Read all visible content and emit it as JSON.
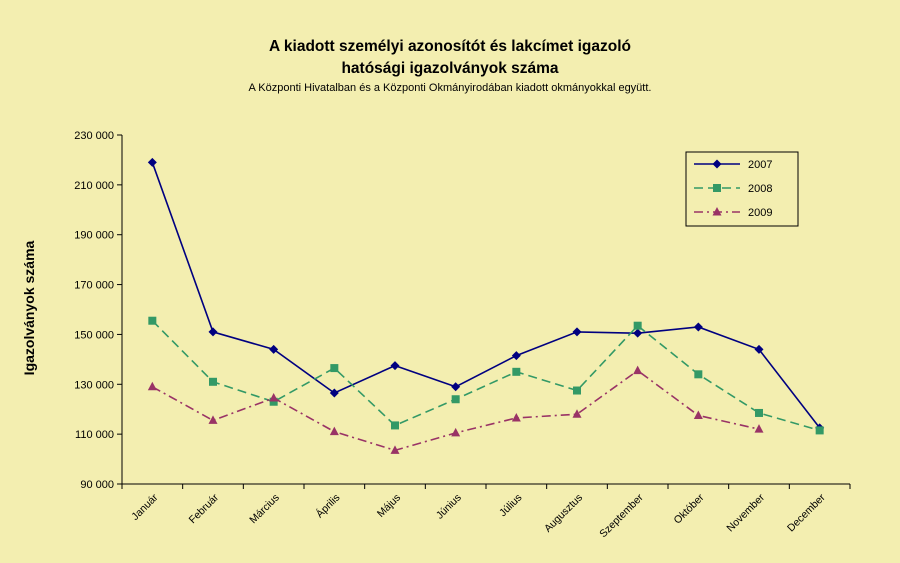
{
  "chart_data": {
    "type": "line",
    "title_line1": "A kiadott személyi azonosítót és lakcímet igazoló",
    "title_line2": "hatósági igazolványok száma",
    "subtitle": "A Központi Hivatalban és a Központi Okmányirodában kiadott okmányokkal együtt.",
    "xlabel": "",
    "ylabel": "Igazolványok száma",
    "ylim": [
      90000,
      230000
    ],
    "yticks": [
      90000,
      110000,
      130000,
      150000,
      170000,
      190000,
      210000,
      230000
    ],
    "ytick_labels": [
      "90 000",
      "110 000",
      "130 000",
      "150 000",
      "170 000",
      "190 000",
      "210 000",
      "230 000"
    ],
    "categories": [
      "Január",
      "Február",
      "Március",
      "Április",
      "Május",
      "Június",
      "Július",
      "Augusztus",
      "Szeptember",
      "Október",
      "November",
      "December"
    ],
    "grid": false,
    "legend_position": "top-right",
    "series": [
      {
        "name": "2007",
        "color": "#000080",
        "marker": "diamond",
        "dash": "solid",
        "values": [
          219000,
          151000,
          144000,
          126500,
          137500,
          129000,
          141500,
          151000,
          150500,
          153000,
          144000,
          112500
        ]
      },
      {
        "name": "2008",
        "color": "#339966",
        "marker": "square",
        "dash": "dashed",
        "values": [
          155500,
          131000,
          123000,
          136500,
          113500,
          124000,
          135000,
          127500,
          153500,
          134000,
          118500,
          111500
        ]
      },
      {
        "name": "2009",
        "color": "#993366",
        "marker": "triangle",
        "dash": "dashdot",
        "values": [
          129000,
          115500,
          124500,
          111000,
          103500,
          110500,
          116500,
          118000,
          135500,
          117500,
          112000,
          null
        ]
      }
    ]
  }
}
